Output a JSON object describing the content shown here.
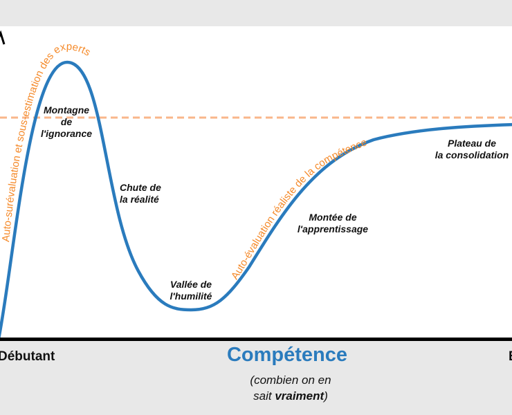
{
  "colors": {
    "curve": "#2a7bbd",
    "annotation": "#f58a2a",
    "dashed_line": "#f9b68a",
    "axis": "#000000"
  },
  "stages": {
    "peak": [
      "Montagne",
      "de",
      "l'ignorance"
    ],
    "fall": [
      "Chute de",
      "la réalité"
    ],
    "valley": [
      "Vallée de",
      "l'humilité"
    ],
    "slope": [
      "Montée de",
      "l'apprentissage"
    ],
    "plateau": [
      "Plateau de",
      "la consolidation"
    ]
  },
  "annotations": {
    "overestimation": "Auto-surévaluation et sous-estimation des experts",
    "realistic": "Auto-évaluation réaliste de la compétence"
  },
  "x_axis": {
    "left_label": "Débutant",
    "right_label": "E",
    "title": "Compétence",
    "subtitle_pre": "(combien on en",
    "subtitle_mid": "sait ",
    "subtitle_bold": "vraiment",
    "subtitle_post": ")"
  }
}
